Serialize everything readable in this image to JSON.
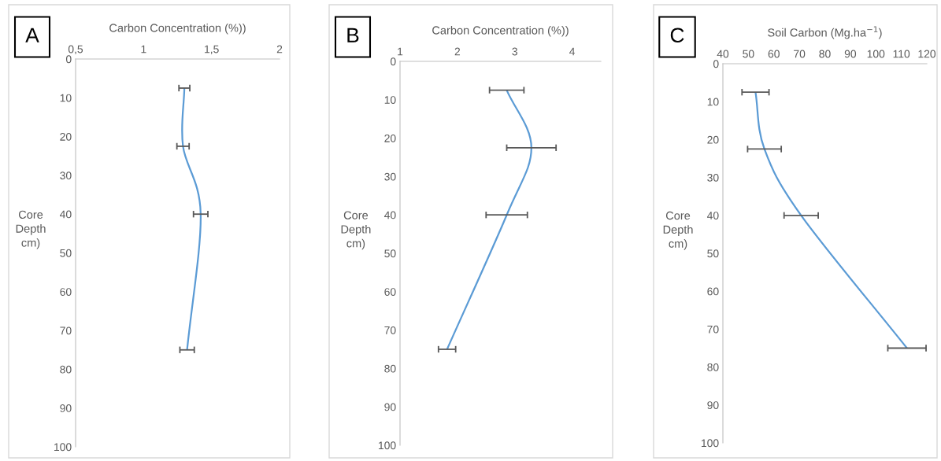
{
  "chart_data": [
    {
      "type": "line",
      "title": "A",
      "xlabel": "Carbon Concentration (%))",
      "ylabel": "Core Depth cm)",
      "xlim": [
        0.5,
        2
      ],
      "xticks": [
        {
          "value": 0.5,
          "label": "0,5"
        },
        1,
        {
          "value": 1.5,
          "label": "1,5"
        },
        2
      ],
      "ylim": [
        100,
        0
      ],
      "yticks": [
        0,
        10,
        20,
        30,
        40,
        50,
        60,
        70,
        80,
        90,
        100
      ],
      "grid": false,
      "marker": "none",
      "line_style": "solid",
      "series": [
        {
          "color": "#5b9bd5",
          "x": [
            1.3,
            1.29,
            1.42,
            1.32
          ],
          "values": [
            7.5,
            22.5,
            40,
            75
          ],
          "xerrors": [
            0.04,
            0.045,
            0.053,
            0.053
          ]
        }
      ]
    },
    {
      "type": "line",
      "title": "B",
      "xlabel": "Carbon Concentration (%))",
      "ylabel": "Core Depth cm)",
      "xlim": [
        1,
        4.5
      ],
      "xticks": [
        1,
        2,
        3,
        4
      ],
      "ylim": [
        100,
        0
      ],
      "yticks": [
        0,
        10,
        20,
        30,
        40,
        50,
        60,
        70,
        80,
        90,
        100
      ],
      "grid": false,
      "marker": "none",
      "line_style": "solid",
      "series": [
        {
          "color": "#5b9bd5",
          "x": [
            2.86,
            3.29,
            2.86,
            1.82
          ],
          "values": [
            7.5,
            22.5,
            40,
            75
          ],
          "xerrors": [
            0.3,
            0.43,
            0.36,
            0.15
          ]
        }
      ]
    },
    {
      "type": "line",
      "title": "C",
      "xlabel": "Soil Carbon (Mg.ha$^{−1}$)",
      "ylabel": "Core Depth cm)",
      "xlim": [
        40,
        120
      ],
      "xticks": [
        40,
        50,
        60,
        70,
        80,
        90,
        100,
        110,
        120
      ],
      "ylim": [
        100,
        0
      ],
      "yticks": [
        0,
        10,
        20,
        30,
        40,
        50,
        60,
        70,
        80,
        90,
        100
      ],
      "grid": false,
      "marker": "none",
      "line_style": "solid",
      "series": [
        {
          "color": "#5b9bd5",
          "x": [
            52.8,
            56.3,
            70.7,
            112.2
          ],
          "values": [
            7.5,
            22.5,
            40,
            75
          ],
          "xerrors": [
            5.3,
            6.6,
            6.7,
            7.5
          ]
        }
      ]
    }
  ]
}
